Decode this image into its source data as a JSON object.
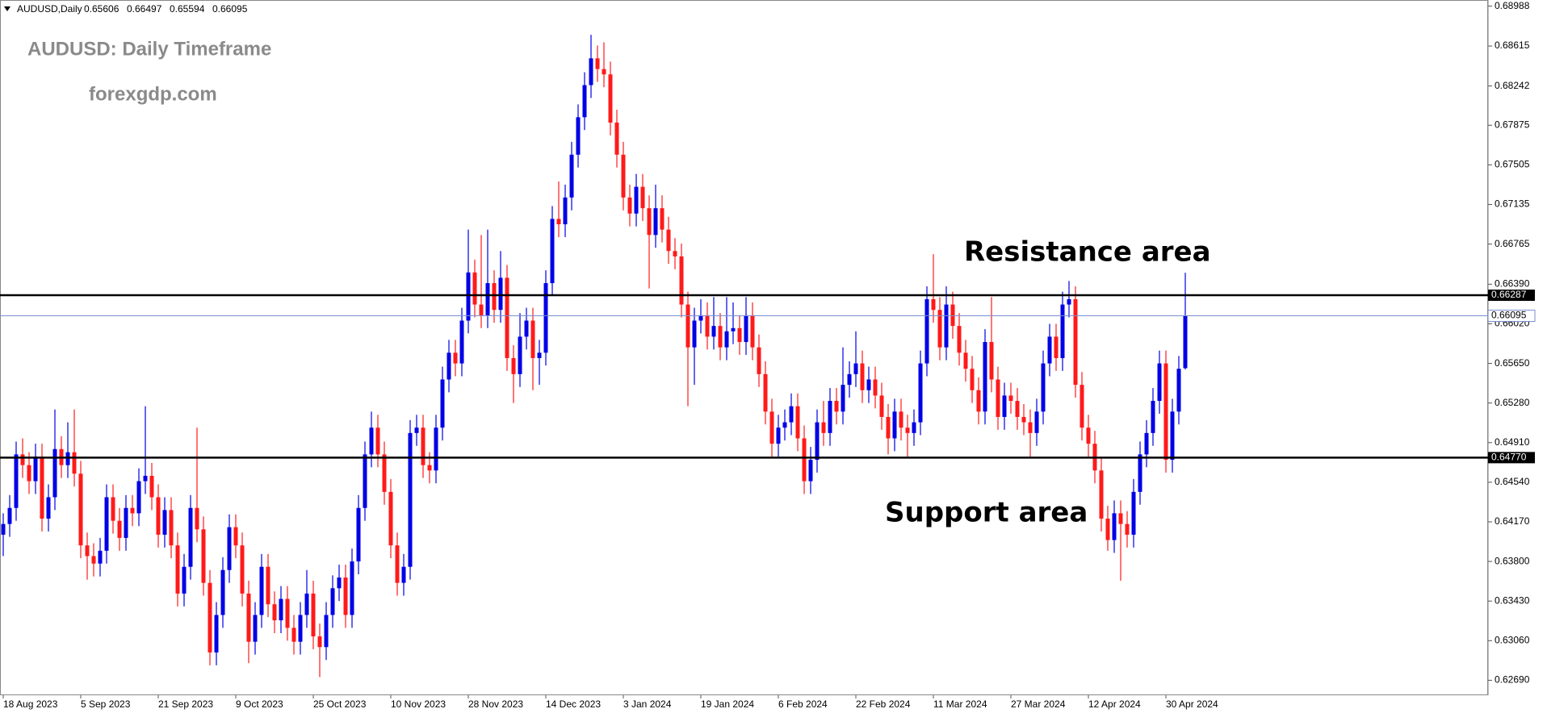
{
  "chart_data": {
    "type": "candlestick",
    "symbol": "AUDUSD,Daily",
    "title": "AUDUSD: Daily Timeframe",
    "subtitle": "forexgdp.com",
    "annotations": [
      "Resistance area",
      "Support area"
    ],
    "up_color": "#0000e6",
    "down_color": "#ff1a1a",
    "level_color": "#000000",
    "price_line_color": "#7a8fd0",
    "ylim": [
      0.6255,
      0.6903
    ],
    "yticks": [
      0.68988,
      0.68615,
      0.68242,
      0.67875,
      0.67505,
      0.67135,
      0.66765,
      {
        "value": 0.6639,
        "label": "0.66390"
      },
      {
        "value": 0.6602,
        "label": "0.66020"
      },
      {
        "value": 0.6565,
        "label": "0.65650"
      },
      {
        "value": 0.6528,
        "label": "0.65280"
      },
      {
        "value": 0.6491,
        "label": "0.64910"
      },
      {
        "value": 0.6454,
        "label": "0.64540"
      },
      {
        "value": 0.6417,
        "label": "0.64170"
      },
      {
        "value": 0.638,
        "label": "0.63800"
      },
      {
        "value": 0.6343,
        "label": "0.63430"
      },
      {
        "value": 0.6306,
        "label": "0.63060"
      },
      {
        "value": 0.6269,
        "label": "0.62690"
      }
    ],
    "levels": [
      0.66287,
      {
        "value": 0.6477,
        "label": "0.64770"
      }
    ],
    "categories": [
      "18 Aug 2023",
      null,
      null,
      null,
      null,
      null,
      null,
      null,
      null,
      null,
      null,
      null,
      "5 Sep 2023",
      null,
      null,
      null,
      null,
      null,
      null,
      null,
      null,
      null,
      null,
      null,
      "21 Sep 2023",
      null,
      null,
      null,
      null,
      null,
      null,
      null,
      null,
      null,
      null,
      null,
      "9 Oct 2023",
      null,
      null,
      null,
      null,
      null,
      null,
      null,
      null,
      null,
      null,
      null,
      "25 Oct 2023",
      null,
      null,
      null,
      null,
      null,
      null,
      null,
      null,
      null,
      null,
      null,
      "10 Nov 2023",
      null,
      null,
      null,
      null,
      null,
      null,
      null,
      null,
      null,
      null,
      null,
      "28 Nov 2023",
      null,
      null,
      null,
      null,
      null,
      null,
      null,
      null,
      null,
      null,
      null,
      "14 Dec 2023",
      null,
      null,
      null,
      null,
      null,
      null,
      null,
      null,
      null,
      null,
      null,
      "3 Jan 2024",
      null,
      null,
      null,
      null,
      null,
      null,
      null,
      null,
      null,
      null,
      null,
      "19 Jan 2024",
      null,
      null,
      null,
      null,
      null,
      null,
      null,
      null,
      null,
      null,
      null,
      "6 Feb 2024",
      null,
      null,
      null,
      null,
      null,
      null,
      null,
      null,
      null,
      null,
      null,
      "22 Feb 2024",
      null,
      null,
      null,
      null,
      null,
      null,
      null,
      null,
      null,
      null,
      null,
      "11 Mar 2024",
      null,
      null,
      null,
      null,
      null,
      null,
      null,
      null,
      null,
      null,
      null,
      "27 Mar 2024",
      null,
      null,
      null,
      null,
      null,
      null,
      null,
      null,
      null,
      null,
      null,
      "12 Apr 2024",
      null,
      null,
      null,
      null,
      null,
      null,
      null,
      null,
      null,
      null,
      null,
      "30 Apr 2024",
      null,
      null,
      null
    ],
    "ohlc": [
      [
        0.6405,
        0.6425,
        0.6385,
        0.6415
      ],
      [
        0.6415,
        0.6442,
        0.6403,
        0.643
      ],
      [
        0.643,
        0.6492,
        0.6418,
        0.648
      ],
      [
        0.648,
        0.6495,
        0.6458,
        0.647
      ],
      [
        0.647,
        0.6482,
        0.6443,
        0.6455
      ],
      [
        0.6455,
        0.649,
        0.6443,
        0.6478
      ],
      [
        0.6478,
        0.649,
        0.6408,
        0.642
      ],
      [
        0.642,
        0.6452,
        0.6408,
        0.644
      ],
      [
        0.644,
        0.6522,
        0.6428,
        0.6485
      ],
      [
        0.6485,
        0.6497,
        0.6458,
        0.647
      ],
      [
        0.647,
        0.651,
        0.6458,
        0.6482
      ],
      [
        0.6482,
        0.6522,
        0.645,
        0.6462
      ],
      [
        0.6462,
        0.6474,
        0.6383,
        0.6395
      ],
      [
        0.6395,
        0.6407,
        0.6363,
        0.6385
      ],
      [
        0.6385,
        0.6397,
        0.6366,
        0.6378
      ],
      [
        0.6378,
        0.6402,
        0.6366,
        0.639
      ],
      [
        0.639,
        0.6452,
        0.6378,
        0.644
      ],
      [
        0.644,
        0.6452,
        0.6406,
        0.6418
      ],
      [
        0.6418,
        0.643,
        0.639,
        0.6402
      ],
      [
        0.6402,
        0.6442,
        0.639,
        0.643
      ],
      [
        0.643,
        0.6442,
        0.6413,
        0.6425
      ],
      [
        0.6425,
        0.6467,
        0.6413,
        0.6455
      ],
      [
        0.6455,
        0.6525,
        0.6443,
        0.646
      ],
      [
        0.646,
        0.6472,
        0.6428,
        0.644
      ],
      [
        0.644,
        0.6452,
        0.6393,
        0.6405
      ],
      [
        0.6405,
        0.644,
        0.6393,
        0.6428
      ],
      [
        0.6428,
        0.644,
        0.6383,
        0.6395
      ],
      [
        0.6395,
        0.6407,
        0.6338,
        0.635
      ],
      [
        0.635,
        0.6387,
        0.6338,
        0.6375
      ],
      [
        0.6375,
        0.6442,
        0.6363,
        0.643
      ],
      [
        0.643,
        0.6505,
        0.6398,
        0.641
      ],
      [
        0.641,
        0.6422,
        0.6348,
        0.636
      ],
      [
        0.636,
        0.6372,
        0.6283,
        0.6295
      ],
      [
        0.6295,
        0.6342,
        0.6283,
        0.633
      ],
      [
        0.633,
        0.6384,
        0.6318,
        0.6372
      ],
      [
        0.6372,
        0.6424,
        0.636,
        0.6412
      ],
      [
        0.6412,
        0.6424,
        0.6383,
        0.6395
      ],
      [
        0.6395,
        0.6407,
        0.6338,
        0.635
      ],
      [
        0.635,
        0.6362,
        0.6285,
        0.6305
      ],
      [
        0.6305,
        0.6342,
        0.6293,
        0.633
      ],
      [
        0.633,
        0.6387,
        0.6318,
        0.6375
      ],
      [
        0.6375,
        0.6387,
        0.6328,
        0.634
      ],
      [
        0.634,
        0.6352,
        0.6313,
        0.6325
      ],
      [
        0.6325,
        0.6357,
        0.6313,
        0.6345
      ],
      [
        0.6345,
        0.6357,
        0.6306,
        0.6318
      ],
      [
        0.6318,
        0.633,
        0.6293,
        0.6305
      ],
      [
        0.6305,
        0.6342,
        0.6293,
        0.633
      ],
      [
        0.633,
        0.6372,
        0.6318,
        0.635
      ],
      [
        0.635,
        0.6362,
        0.6298,
        0.631
      ],
      [
        0.631,
        0.6322,
        0.6272,
        0.63
      ],
      [
        0.63,
        0.6342,
        0.6288,
        0.633
      ],
      [
        0.633,
        0.6367,
        0.6318,
        0.6355
      ],
      [
        0.6355,
        0.6377,
        0.6343,
        0.6365
      ],
      [
        0.6365,
        0.6377,
        0.6318,
        0.633
      ],
      [
        0.633,
        0.6392,
        0.6318,
        0.638
      ],
      [
        0.638,
        0.6442,
        0.6368,
        0.643
      ],
      [
        0.643,
        0.6492,
        0.6418,
        0.648
      ],
      [
        0.648,
        0.652,
        0.6468,
        0.6505
      ],
      [
        0.6505,
        0.6517,
        0.6468,
        0.648
      ],
      [
        0.648,
        0.6492,
        0.6433,
        0.6445
      ],
      [
        0.6445,
        0.6457,
        0.6383,
        0.6395
      ],
      [
        0.6395,
        0.6407,
        0.6348,
        0.636
      ],
      [
        0.636,
        0.6387,
        0.6348,
        0.6375
      ],
      [
        0.6375,
        0.6512,
        0.6363,
        0.65
      ],
      [
        0.65,
        0.6517,
        0.6488,
        0.6505
      ],
      [
        0.6505,
        0.6517,
        0.6458,
        0.647
      ],
      [
        0.647,
        0.6482,
        0.6453,
        0.6465
      ],
      [
        0.6465,
        0.6517,
        0.6453,
        0.6505
      ],
      [
        0.6505,
        0.6562,
        0.6493,
        0.655
      ],
      [
        0.655,
        0.6587,
        0.6538,
        0.6575
      ],
      [
        0.6575,
        0.6587,
        0.6553,
        0.6565
      ],
      [
        0.6565,
        0.6617,
        0.6553,
        0.6605
      ],
      [
        0.6605,
        0.669,
        0.6593,
        0.665
      ],
      [
        0.665,
        0.6662,
        0.6608,
        0.662
      ],
      [
        0.662,
        0.6685,
        0.6598,
        0.661
      ],
      [
        0.661,
        0.669,
        0.6598,
        0.664
      ],
      [
        0.664,
        0.6652,
        0.6603,
        0.6615
      ],
      [
        0.6615,
        0.667,
        0.6603,
        0.6645
      ],
      [
        0.6645,
        0.6657,
        0.6558,
        0.657
      ],
      [
        0.657,
        0.6582,
        0.6528,
        0.6555
      ],
      [
        0.6555,
        0.6612,
        0.6543,
        0.659
      ],
      [
        0.659,
        0.6617,
        0.6578,
        0.6605
      ],
      [
        0.6605,
        0.6617,
        0.654,
        0.657
      ],
      [
        0.657,
        0.6587,
        0.6545,
        0.6575
      ],
      [
        0.6575,
        0.6652,
        0.6563,
        0.664
      ],
      [
        0.664,
        0.6712,
        0.6628,
        0.67
      ],
      [
        0.67,
        0.6735,
        0.6683,
        0.6695
      ],
      [
        0.6695,
        0.6732,
        0.6683,
        0.672
      ],
      [
        0.672,
        0.6772,
        0.6708,
        0.676
      ],
      [
        0.676,
        0.6807,
        0.6748,
        0.6795
      ],
      [
        0.6795,
        0.6837,
        0.6783,
        0.6825
      ],
      [
        0.6825,
        0.6872,
        0.6813,
        0.685
      ],
      [
        0.685,
        0.6862,
        0.6828,
        0.684
      ],
      [
        0.684,
        0.6865,
        0.6823,
        0.6835
      ],
      [
        0.6835,
        0.6847,
        0.6778,
        0.679
      ],
      [
        0.679,
        0.6802,
        0.6748,
        0.676
      ],
      [
        0.676,
        0.6772,
        0.6708,
        0.672
      ],
      [
        0.672,
        0.6732,
        0.6693,
        0.6705
      ],
      [
        0.6705,
        0.6742,
        0.6693,
        0.673
      ],
      [
        0.673,
        0.6742,
        0.6698,
        0.671
      ],
      [
        0.671,
        0.6722,
        0.6635,
        0.6685
      ],
      [
        0.6685,
        0.6732,
        0.6673,
        0.671
      ],
      [
        0.671,
        0.6722,
        0.6678,
        0.669
      ],
      [
        0.669,
        0.6702,
        0.6658,
        0.667
      ],
      [
        0.667,
        0.6682,
        0.6653,
        0.6665
      ],
      [
        0.6665,
        0.6677,
        0.6608,
        0.662
      ],
      [
        0.662,
        0.6632,
        0.6525,
        0.658
      ],
      [
        0.658,
        0.6617,
        0.6545,
        0.6605
      ],
      [
        0.6605,
        0.6625,
        0.6593,
        0.661
      ],
      [
        0.661,
        0.6622,
        0.6578,
        0.659
      ],
      [
        0.659,
        0.6627,
        0.6578,
        0.66
      ],
      [
        0.66,
        0.6612,
        0.6568,
        0.658
      ],
      [
        0.658,
        0.6627,
        0.6568,
        0.6595
      ],
      [
        0.6595,
        0.6622,
        0.6583,
        0.6598
      ],
      [
        0.6598,
        0.661,
        0.6573,
        0.6585
      ],
      [
        0.6585,
        0.6627,
        0.6573,
        0.661
      ],
      [
        0.661,
        0.6622,
        0.6568,
        0.658
      ],
      [
        0.658,
        0.6592,
        0.6543,
        0.6555
      ],
      [
        0.6555,
        0.6567,
        0.6508,
        0.652
      ],
      [
        0.652,
        0.6532,
        0.6478,
        0.649
      ],
      [
        0.649,
        0.6517,
        0.6478,
        0.6505
      ],
      [
        0.6505,
        0.6522,
        0.6493,
        0.651
      ],
      [
        0.651,
        0.6537,
        0.6498,
        0.6525
      ],
      [
        0.6525,
        0.6537,
        0.6483,
        0.6495
      ],
      [
        0.6495,
        0.6507,
        0.6443,
        0.6455
      ],
      [
        0.6455,
        0.6487,
        0.6443,
        0.6475
      ],
      [
        0.6475,
        0.6522,
        0.6463,
        0.651
      ],
      [
        0.651,
        0.653,
        0.6488,
        0.65
      ],
      [
        0.65,
        0.6542,
        0.6488,
        0.653
      ],
      [
        0.653,
        0.6542,
        0.6508,
        0.652
      ],
      [
        0.652,
        0.658,
        0.6508,
        0.6545
      ],
      [
        0.6545,
        0.6567,
        0.6533,
        0.6555
      ],
      [
        0.6555,
        0.6595,
        0.6543,
        0.6565
      ],
      [
        0.6565,
        0.6577,
        0.6528,
        0.654
      ],
      [
        0.654,
        0.6562,
        0.6528,
        0.655
      ],
      [
        0.655,
        0.6562,
        0.6523,
        0.6535
      ],
      [
        0.6535,
        0.6547,
        0.6503,
        0.6515
      ],
      [
        0.6515,
        0.6527,
        0.648,
        0.6495
      ],
      [
        0.6495,
        0.6532,
        0.6483,
        0.652
      ],
      [
        0.652,
        0.6532,
        0.6493,
        0.6505
      ],
      [
        0.6505,
        0.6517,
        0.6478,
        0.65
      ],
      [
        0.65,
        0.6522,
        0.6488,
        0.651
      ],
      [
        0.651,
        0.6577,
        0.6498,
        0.6565
      ],
      [
        0.6565,
        0.6637,
        0.6553,
        0.6625
      ],
      [
        0.6625,
        0.6667,
        0.6603,
        0.6615
      ],
      [
        0.6615,
        0.6627,
        0.6568,
        0.658
      ],
      [
        0.658,
        0.6637,
        0.6568,
        0.662
      ],
      [
        0.662,
        0.6632,
        0.6588,
        0.66
      ],
      [
        0.66,
        0.6612,
        0.6563,
        0.6575
      ],
      [
        0.6575,
        0.6587,
        0.6548,
        0.656
      ],
      [
        0.656,
        0.6572,
        0.6528,
        0.654
      ],
      [
        0.654,
        0.6552,
        0.6508,
        0.652
      ],
      [
        0.652,
        0.6597,
        0.6508,
        0.6585
      ],
      [
        0.6585,
        0.6627,
        0.6538,
        0.655
      ],
      [
        0.655,
        0.6562,
        0.6503,
        0.6515
      ],
      [
        0.6515,
        0.6547,
        0.6503,
        0.6535
      ],
      [
        0.6535,
        0.6547,
        0.6518,
        0.653
      ],
      [
        0.653,
        0.6542,
        0.6503,
        0.6515
      ],
      [
        0.6515,
        0.6527,
        0.6498,
        0.651
      ],
      [
        0.651,
        0.6522,
        0.6478,
        0.65
      ],
      [
        0.65,
        0.6532,
        0.6488,
        0.652
      ],
      [
        0.652,
        0.6577,
        0.6508,
        0.6565
      ],
      [
        0.6565,
        0.6602,
        0.6553,
        0.659
      ],
      [
        0.659,
        0.6602,
        0.6558,
        0.657
      ],
      [
        0.657,
        0.6632,
        0.6558,
        0.662
      ],
      [
        0.662,
        0.6642,
        0.6608,
        0.6625
      ],
      [
        0.6625,
        0.6637,
        0.6533,
        0.6545
      ],
      [
        0.6545,
        0.6557,
        0.6493,
        0.6505
      ],
      [
        0.6505,
        0.6517,
        0.6478,
        0.649
      ],
      [
        0.649,
        0.6502,
        0.6453,
        0.6465
      ],
      [
        0.6465,
        0.6477,
        0.6408,
        0.642
      ],
      [
        0.642,
        0.6432,
        0.639,
        0.64
      ],
      [
        0.64,
        0.6437,
        0.6388,
        0.6425
      ],
      [
        0.6425,
        0.6437,
        0.6362,
        0.6415
      ],
      [
        0.6415,
        0.6427,
        0.6393,
        0.6405
      ],
      [
        0.6405,
        0.6457,
        0.6393,
        0.6445
      ],
      [
        0.6445,
        0.6492,
        0.6433,
        0.648
      ],
      [
        0.648,
        0.6512,
        0.6468,
        0.65
      ],
      [
        0.65,
        0.6542,
        0.6488,
        0.653
      ],
      [
        0.653,
        0.6577,
        0.6518,
        0.6565
      ],
      [
        0.6565,
        0.6577,
        0.6463,
        0.6475
      ],
      [
        0.6475,
        0.6532,
        0.6463,
        0.652
      ],
      [
        0.652,
        0.6572,
        0.6508,
        0.656
      ],
      [
        0.65606,
        0.66497,
        0.65594,
        0.66095
      ]
    ]
  }
}
